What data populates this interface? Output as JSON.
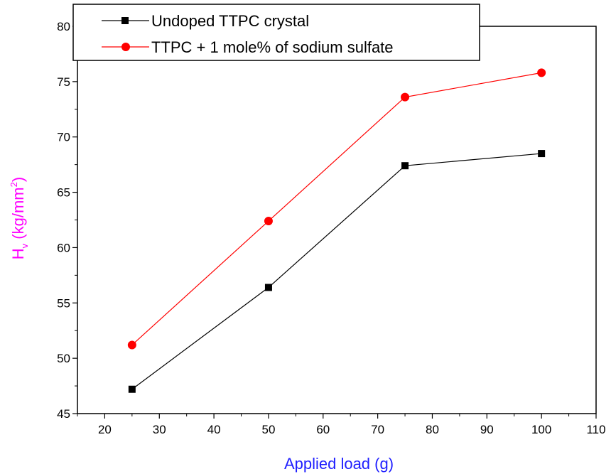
{
  "chart_data": {
    "type": "line",
    "title": "",
    "xlabel": "Applied load (g)",
    "ylabel_main": "H",
    "ylabel_sub": "v",
    "ylabel_units_pre": " (kg/mm",
    "ylabel_units_sup": "2",
    "ylabel_units_post": ")",
    "xlim": [
      15,
      110
    ],
    "ylim": [
      45,
      80
    ],
    "xticks": [
      20,
      30,
      40,
      50,
      60,
      70,
      80,
      90,
      100,
      110
    ],
    "yticks": [
      45,
      50,
      55,
      60,
      65,
      70,
      75,
      80
    ],
    "grid": false,
    "legend_position": "top-left",
    "xlabel_color": "#1f1fff",
    "ylabel_color": "#ff00ff",
    "series": [
      {
        "name": "Undoped TTPC crystal",
        "marker": "square",
        "color": "#000000",
        "x": [
          25,
          50,
          75,
          100
        ],
        "y": [
          47.2,
          56.4,
          67.4,
          68.5
        ]
      },
      {
        "name": "TTPC + 1 mole% of sodium sulfate",
        "marker": "circle",
        "color": "#ff0000",
        "x": [
          25,
          50,
          75,
          100
        ],
        "y": [
          51.2,
          62.4,
          73.6,
          75.8
        ]
      }
    ]
  }
}
